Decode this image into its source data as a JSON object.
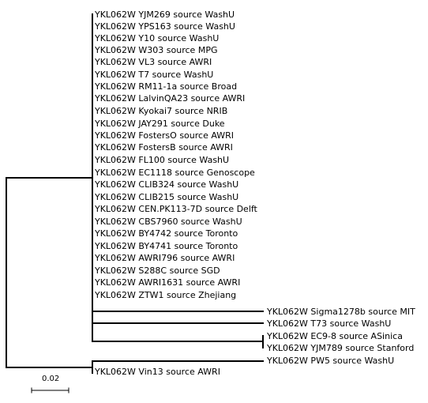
{
  "tree": {
    "clade_main": [
      "YKL062W YJM269 source WashU",
      "YKL062W YPS163 source WashU",
      "YKL062W Y10 source WashU",
      "YKL062W W303 source MPG",
      "YKL062W VL3 source AWRI",
      "YKL062W T7 source WashU",
      "YKL062W RM11-1a source Broad",
      "YKL062W LalvinQA23 source AWRI",
      "YKL062W Kyokai7 source NRIB",
      "YKL062W JAY291 source Duke",
      "YKL062W FostersO source AWRI",
      "YKL062W FostersB source AWRI",
      "YKL062W FL100 source WashU",
      "YKL062W EC1118 source Genoscope",
      "YKL062W CLIB324 source WashU",
      "YKL062W CLIB215 source WashU",
      "YKL062W CEN.PK113-7D source Delft",
      "YKL062W CBS7960 source WashU",
      "YKL062W BY4742 source Toronto",
      "YKL062W BY4741 source Toronto",
      "YKL062W AWRI796 source AWRI",
      "YKL062W S288C source SGD",
      "YKL062W AWRI1631 source AWRI",
      "YKL062W ZTW1 source Zhejiang"
    ],
    "long_branches": [
      "YKL062W Sigma1278b source MIT",
      "YKL062W T73 source WashU"
    ],
    "pair_clade": [
      "YKL062W EC9-8 source ASinica",
      "YKL062W YJM789 source Stanford"
    ],
    "outgroup": [
      "YKL062W PW5 source WashU",
      "YKL062W Vin13 source AWRI"
    ]
  },
  "scale_bar": {
    "label": "0.02",
    "value": 0.02
  }
}
